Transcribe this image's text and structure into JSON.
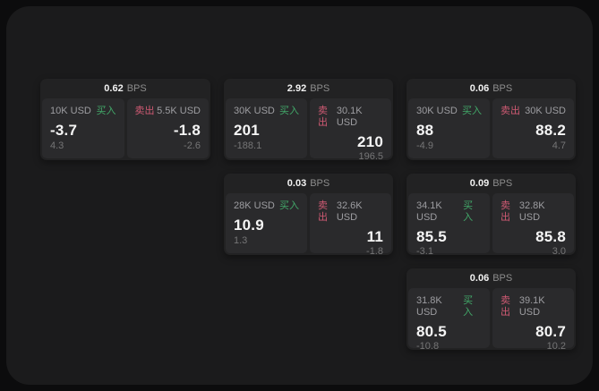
{
  "labels": {
    "bps_unit": "BPS",
    "buy": "买入",
    "sell": "卖出"
  },
  "colors": {
    "buy_accent": "#42a869",
    "sell_accent": "#cf5a73",
    "surface": "#1b1b1c",
    "card": "#222223",
    "panel": "#2a2a2c"
  },
  "cards": [
    {
      "bps": "0.62",
      "buy_size": "10K USD",
      "buy_price": "-3.7",
      "buy_delta": "4.3",
      "sell_size": "5.5K USD",
      "sell_price": "-1.8",
      "sell_delta": "-2.6"
    },
    {
      "bps": "2.92",
      "buy_size": "30K USD",
      "buy_price": "201",
      "buy_delta": "-188.1",
      "sell_size": "30.1K USD",
      "sell_price": "210",
      "sell_delta": "196.5"
    },
    {
      "bps": "0.06",
      "buy_size": "30K USD",
      "buy_price": "88",
      "buy_delta": "-4.9",
      "sell_size": "30K USD",
      "sell_price": "88.2",
      "sell_delta": "4.7"
    },
    {
      "bps": "0.03",
      "buy_size": "28K USD",
      "buy_price": "10.9",
      "buy_delta": "1.3",
      "sell_size": "32.6K USD",
      "sell_price": "11",
      "sell_delta": "-1.8"
    },
    {
      "bps": "0.09",
      "buy_size": "34.1K USD",
      "buy_price": "85.5",
      "buy_delta": "-3.1",
      "sell_size": "32.8K USD",
      "sell_price": "85.8",
      "sell_delta": "3.0"
    },
    {
      "bps": "0.06",
      "buy_size": "31.8K USD",
      "buy_price": "80.5",
      "buy_delta": "-10.8",
      "sell_size": "39.1K USD",
      "sell_price": "80.7",
      "sell_delta": "10.2"
    }
  ]
}
